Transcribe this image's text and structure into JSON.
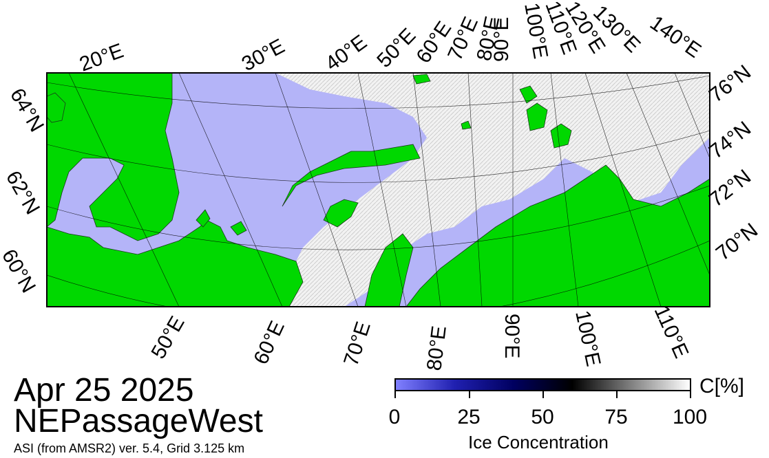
{
  "map": {
    "title_date": "Apr 25 2025",
    "region": "NEPassageWest",
    "source": "ASI (from AMSR2) ver. 5.4,  Grid 3.125 km",
    "top_lon_labels": [
      "20°E",
      "30°E",
      "40°E",
      "50°E",
      "60°E",
      "70°E",
      "80°E",
      "90°E",
      "100°E",
      "110°E",
      "120°E",
      "130°E",
      "140°E"
    ],
    "bottom_lon_labels": [
      "50°E",
      "60°E",
      "70°E",
      "80°E",
      "90°E",
      "100°E",
      "110°E"
    ],
    "left_lat_labels": [
      "64°N",
      "62°N",
      "60°N"
    ],
    "right_lat_labels": [
      "76°N",
      "74°N",
      "72°N",
      "70°N"
    ],
    "colors": {
      "land": "#00d800",
      "open_water": "#b4b4f8",
      "ice": "#f2f2f2",
      "frame": "#000000"
    },
    "icons": [
      "map-frame",
      "land-mass",
      "sea-ice",
      "graticule"
    ]
  },
  "colorbar": {
    "ticks": [
      "0",
      "25",
      "50",
      "75",
      "100"
    ],
    "unit": "C[%]",
    "title": "Ice Concentration",
    "gradient": [
      "#8080ff",
      "#2020b0",
      "#000060",
      "#000000",
      "#808080",
      "#ffffff"
    ]
  }
}
